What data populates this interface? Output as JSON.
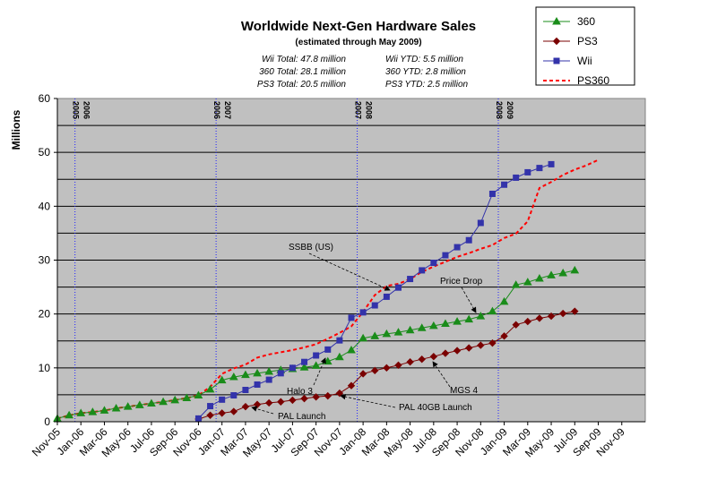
{
  "chart_data": {
    "type": "line",
    "title": "Worldwide Next-Gen Hardware Sales",
    "subtitle": "(estimated through May 2009)",
    "totals": [
      [
        "Wii Total:  47.8 million",
        "Wii YTD:  5.5 million"
      ],
      [
        "360 Total:  28.1 million",
        "360 YTD:  2.8 million"
      ],
      [
        "PS3 Total:  20.5 million",
        "PS3 YTD:  2.5 million"
      ]
    ],
    "ylabel": "Millions",
    "ylim": [
      0,
      60
    ],
    "yticks": [
      0,
      10,
      20,
      30,
      40,
      50,
      60
    ],
    "x_range": [
      "2005-11",
      "2009-12"
    ],
    "xticks": [
      "Nov-05",
      "Jan-06",
      "Mar-06",
      "May-06",
      "Jul-06",
      "Sep-06",
      "Nov-06",
      "Jan-07",
      "Mar-07",
      "May-07",
      "Jul-07",
      "Sep-07",
      "Nov-07",
      "Jan-08",
      "Mar-08",
      "May-08",
      "Jul-08",
      "Sep-08",
      "Nov-08",
      "Jan-09",
      "Mar-09",
      "May-09",
      "Jul-09",
      "Sep-09",
      "Nov-09"
    ],
    "grid": "horizontal",
    "legend_position": "top-right",
    "year_dividers": [
      {
        "date": "2005-12",
        "left": "2005",
        "right": "2006"
      },
      {
        "date": "2006-12",
        "left": "2006",
        "right": "2007"
      },
      {
        "date": "2007-12",
        "left": "2007",
        "right": "2008"
      },
      {
        "date": "2008-12",
        "left": "2008",
        "right": "2009"
      }
    ],
    "series": [
      {
        "name": "360",
        "color": "#1a8c1a",
        "marker": "triangle",
        "start": "2005-11",
        "values": [
          0.6,
          1.2,
          1.6,
          1.8,
          2.1,
          2.5,
          2.8,
          3.1,
          3.4,
          3.7,
          4.0,
          4.4,
          4.9,
          6.0,
          7.7,
          8.3,
          8.7,
          9.0,
          9.3,
          9.6,
          9.8,
          10.1,
          10.4,
          11.2,
          12.0,
          13.3,
          15.5,
          15.9,
          16.3,
          16.6,
          17.0,
          17.4,
          17.8,
          18.2,
          18.6,
          19.0,
          19.6,
          20.5,
          22.3,
          25.4,
          25.9,
          26.6,
          27.2,
          27.6,
          28.1
        ]
      },
      {
        "name": "PS3",
        "color": "#7a0000",
        "marker": "diamond",
        "start": "2006-11",
        "values": [
          0.5,
          1.2,
          1.6,
          1.9,
          2.8,
          3.2,
          3.5,
          3.7,
          4.0,
          4.3,
          4.6,
          4.8,
          5.3,
          6.7,
          8.9,
          9.5,
          10.0,
          10.5,
          11.1,
          11.6,
          12.1,
          12.7,
          13.2,
          13.7,
          14.2,
          14.6,
          15.9,
          18.0,
          18.6,
          19.2,
          19.6,
          20.1,
          20.5
        ]
      },
      {
        "name": "Wii",
        "color": "#3333aa",
        "marker": "square",
        "start": "2006-11",
        "values": [
          0.6,
          2.9,
          4.1,
          4.9,
          5.9,
          6.9,
          7.8,
          9.0,
          10.0,
          11.1,
          12.3,
          13.4,
          15.1,
          19.3,
          20.3,
          21.6,
          23.2,
          24.9,
          26.5,
          28.1,
          29.5,
          30.9,
          32.4,
          33.7,
          36.9,
          42.3,
          44.0,
          45.3,
          46.3,
          47.1,
          47.8
        ]
      },
      {
        "name": "PS360",
        "color": "#ff0000",
        "marker": "none",
        "dashed": true,
        "start": "2005-11",
        "values": [
          0.6,
          1.2,
          1.6,
          1.8,
          2.1,
          2.5,
          2.8,
          3.1,
          3.4,
          3.7,
          4.0,
          4.4,
          4.9,
          6.5,
          8.9,
          9.9,
          10.6,
          11.9,
          12.5,
          12.9,
          13.3,
          13.8,
          14.4,
          15.4,
          16.5,
          17.7,
          20.4,
          23.5,
          25.2,
          25.6,
          26.5,
          27.8,
          28.8,
          29.7,
          30.6,
          31.3,
          32.1,
          32.8,
          34.1,
          34.9,
          37.2,
          43.4,
          44.5,
          45.8,
          46.8,
          47.6,
          48.6
        ]
      }
    ],
    "annotations": [
      {
        "text": "SSBB (US)",
        "date": "2008-03"
      },
      {
        "text": "Price Drop",
        "date": "2008-09"
      },
      {
        "text": "Halo 3",
        "date": "2007-09"
      },
      {
        "text": "MGS 4",
        "date": "2008-06"
      },
      {
        "text": "PAL Launch",
        "date": "2007-03"
      },
      {
        "text": "PAL 40GB  Launch",
        "date": "2007-11"
      }
    ]
  }
}
